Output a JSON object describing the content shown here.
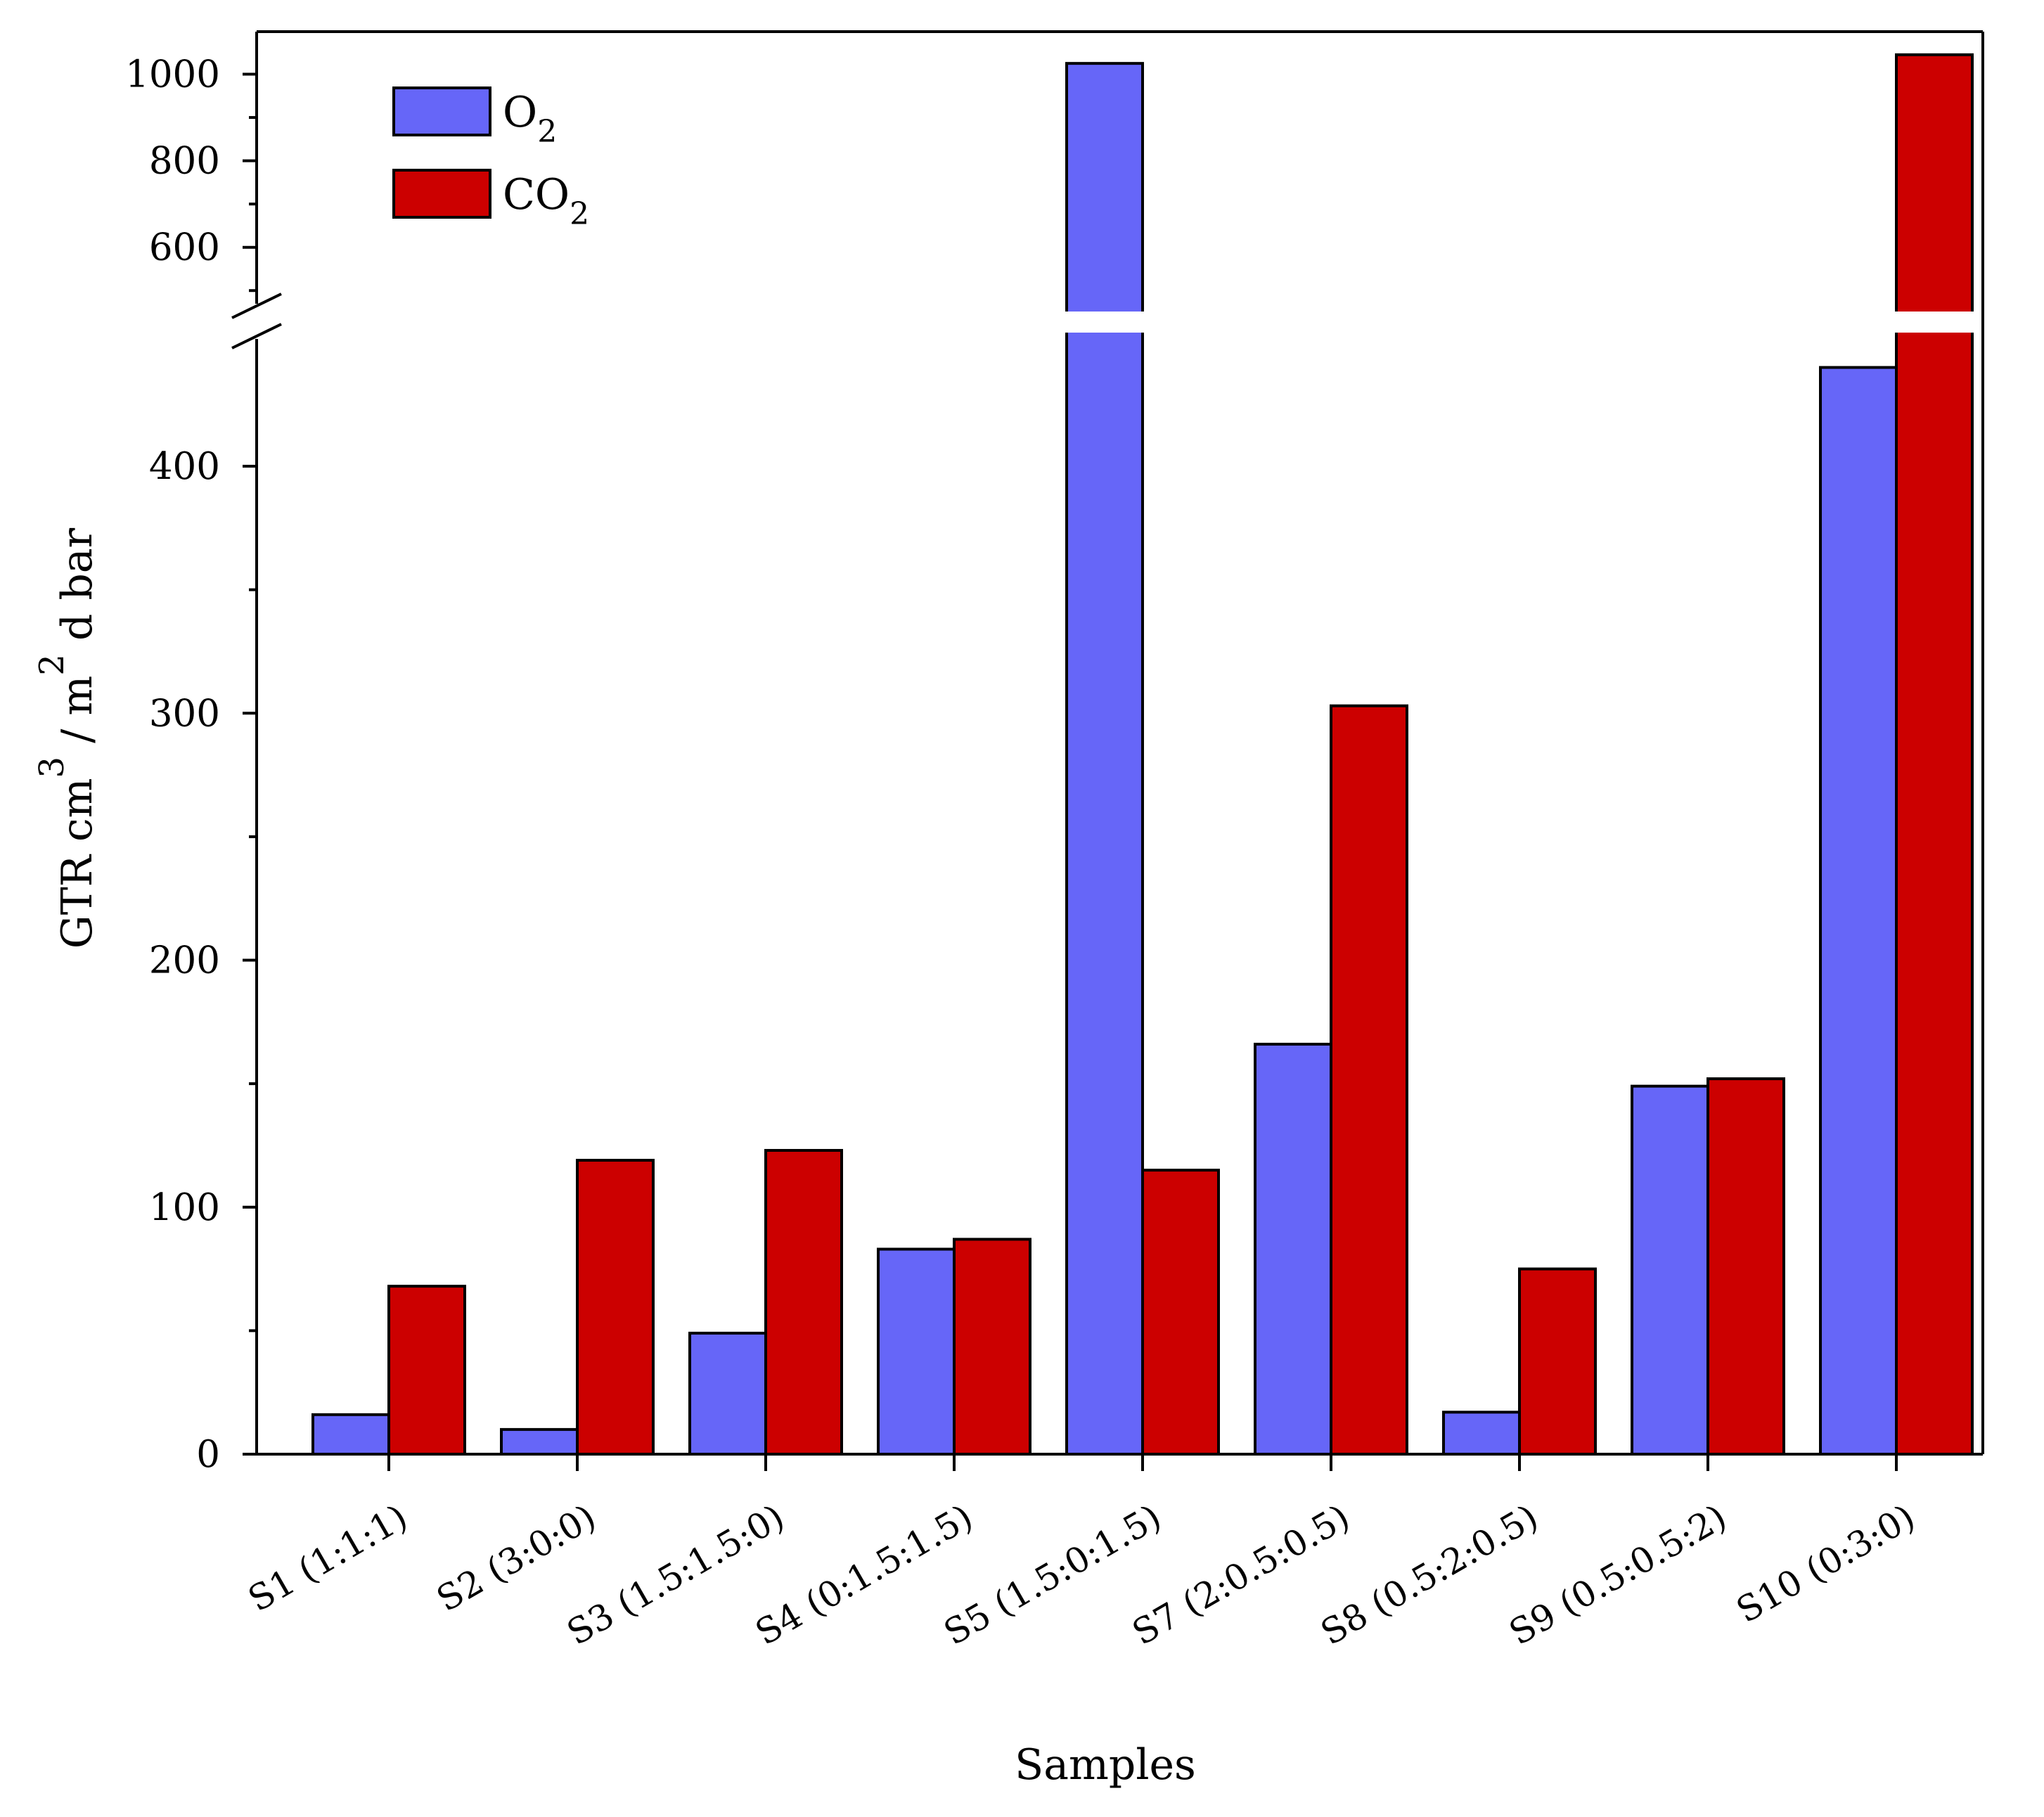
{
  "chart_data": {
    "type": "bar",
    "title": "",
    "xlabel": "Samples",
    "ylabel": {
      "base": "GTR  cm",
      "sup1": "3",
      "mid": " / m",
      "sup2": "2",
      "end": " d bar"
    },
    "categories": [
      "S1 (1:1:1)",
      "S2 (3:0:0)",
      "S3 (1.5:1.5:0)",
      "S4 (0:1.5:1.5)",
      "S5 (1.5:0:1.5)",
      "S7 (2:0.5:0.5)",
      "S8 (0.5:2:0.5)",
      "S9 (0.5:0.5:2)",
      "S10 (0:3:0)"
    ],
    "series": [
      {
        "name": "O2",
        "label": "O",
        "subscript": "2",
        "color": "#6666f8",
        "values": [
          16,
          10,
          49,
          83,
          1025,
          166,
          17,
          149,
          440
        ]
      },
      {
        "name": "CO2",
        "label": "CO",
        "subscript": "2",
        "color": "#cc0000",
        "values": [
          68,
          119,
          123,
          87,
          115,
          303,
          75,
          152,
          1045
        ]
      }
    ],
    "y_axis_broken": true,
    "lower_segment": {
      "ylim": [
        0,
        445
      ],
      "ticks": [
        0,
        100,
        200,
        300,
        400
      ],
      "minor": [
        50,
        150,
        250,
        350
      ]
    },
    "upper_segment": {
      "ylim": [
        450,
        1100
      ],
      "ticks": [
        600,
        800,
        1000
      ],
      "minor": [
        500,
        700,
        900
      ]
    },
    "legend_position": "top-left"
  }
}
